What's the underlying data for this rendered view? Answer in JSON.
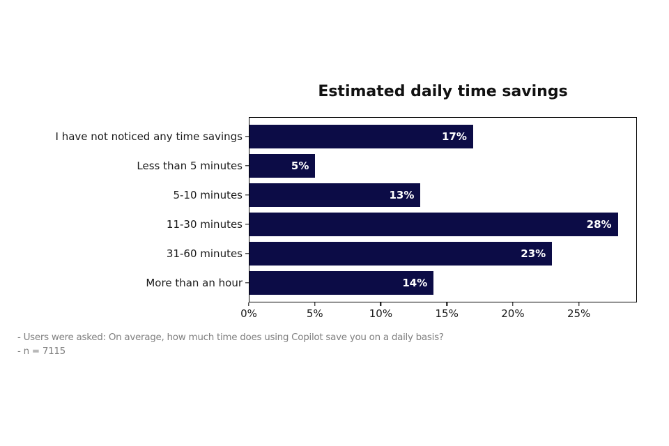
{
  "chart_data": {
    "type": "bar",
    "orientation": "horizontal",
    "title": "Estimated daily time savings",
    "categories": [
      "I have not noticed any time savings",
      "Less than 5 minutes",
      "5-10 minutes",
      "11-30 minutes",
      "31-60 minutes",
      "More than an hour"
    ],
    "values": [
      17,
      5,
      13,
      28,
      23,
      14
    ],
    "value_labels": [
      "17%",
      "5%",
      "13%",
      "28%",
      "23%",
      "14%"
    ],
    "xlabel": "",
    "ylabel": "",
    "xlim": [
      0,
      29.4
    ],
    "x_ticks": [
      0,
      5,
      10,
      15,
      20,
      25
    ],
    "x_tick_labels": [
      "0%",
      "5%",
      "10%",
      "15%",
      "20%",
      "25%"
    ],
    "grid": false,
    "legend": null,
    "bar_color": "#0c0c46",
    "bar_label_color": "#ffffff",
    "axis_color": "#000000"
  },
  "notes": [
    "- Users were asked: On average, how much time does using Copilot save you on a daily basis?",
    "- n = 7115"
  ]
}
